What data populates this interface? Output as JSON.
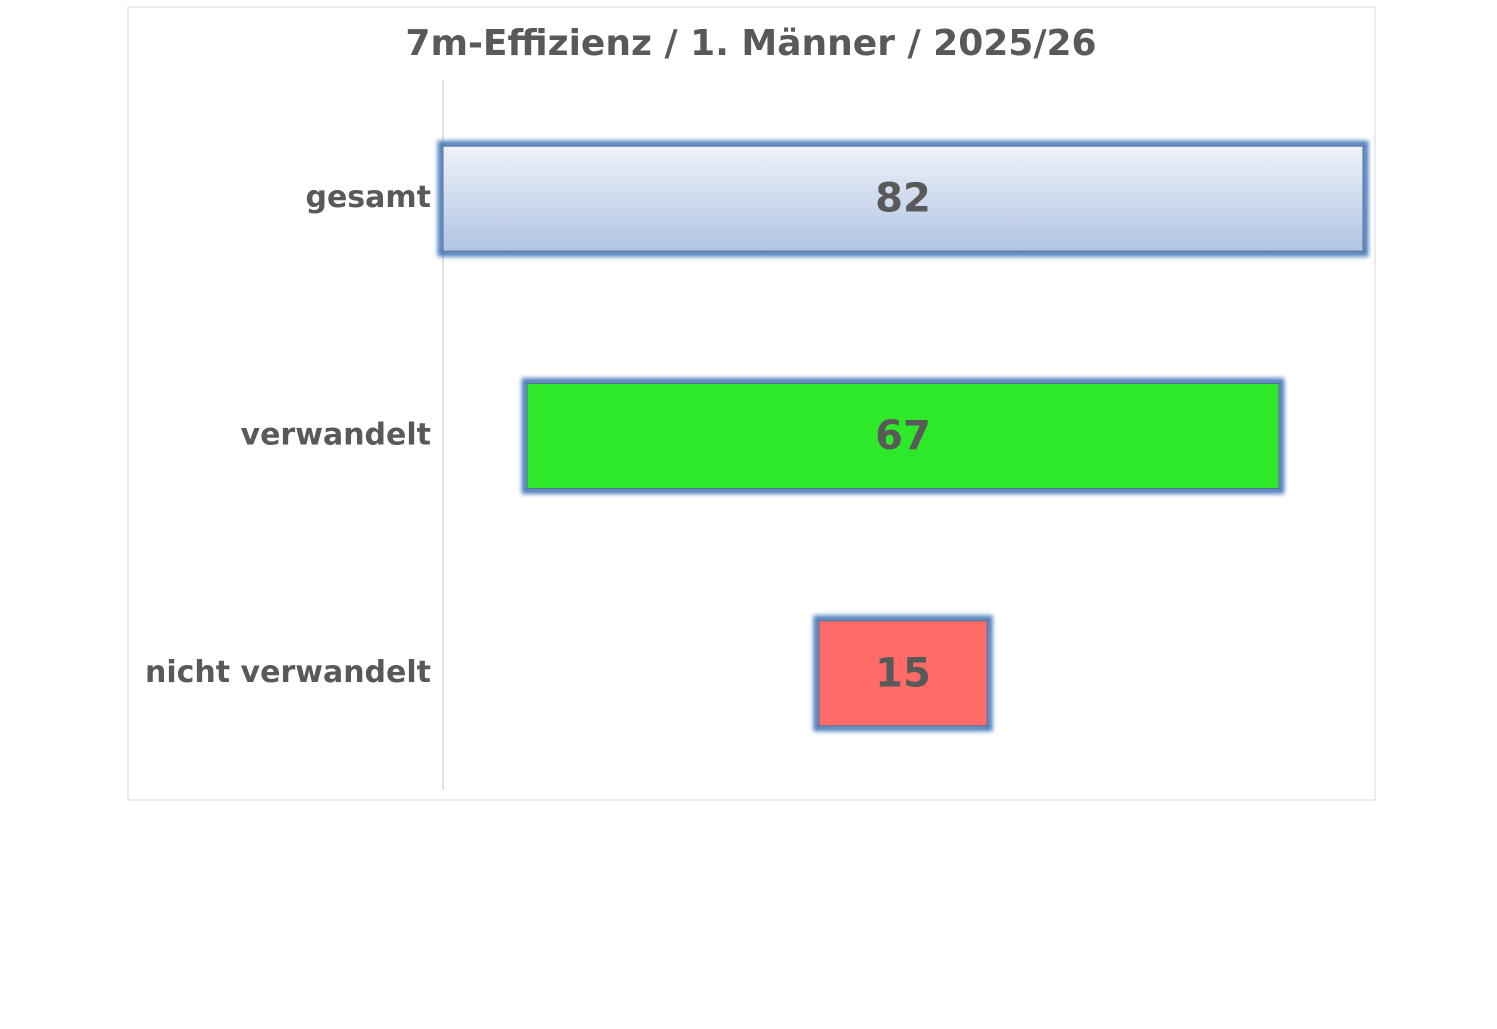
{
  "chart_data": {
    "type": "funnel",
    "title": "7m-Effizienz  / 1. Männer / 2025/26",
    "categories": [
      "gesamt",
      "verwandelt",
      "nicht verwandelt"
    ],
    "values": [
      82,
      67,
      15
    ],
    "colors": [
      "#c5d5ec",
      "#2ee82a",
      "#ff6b66"
    ],
    "border_color": "#4f81bd"
  }
}
